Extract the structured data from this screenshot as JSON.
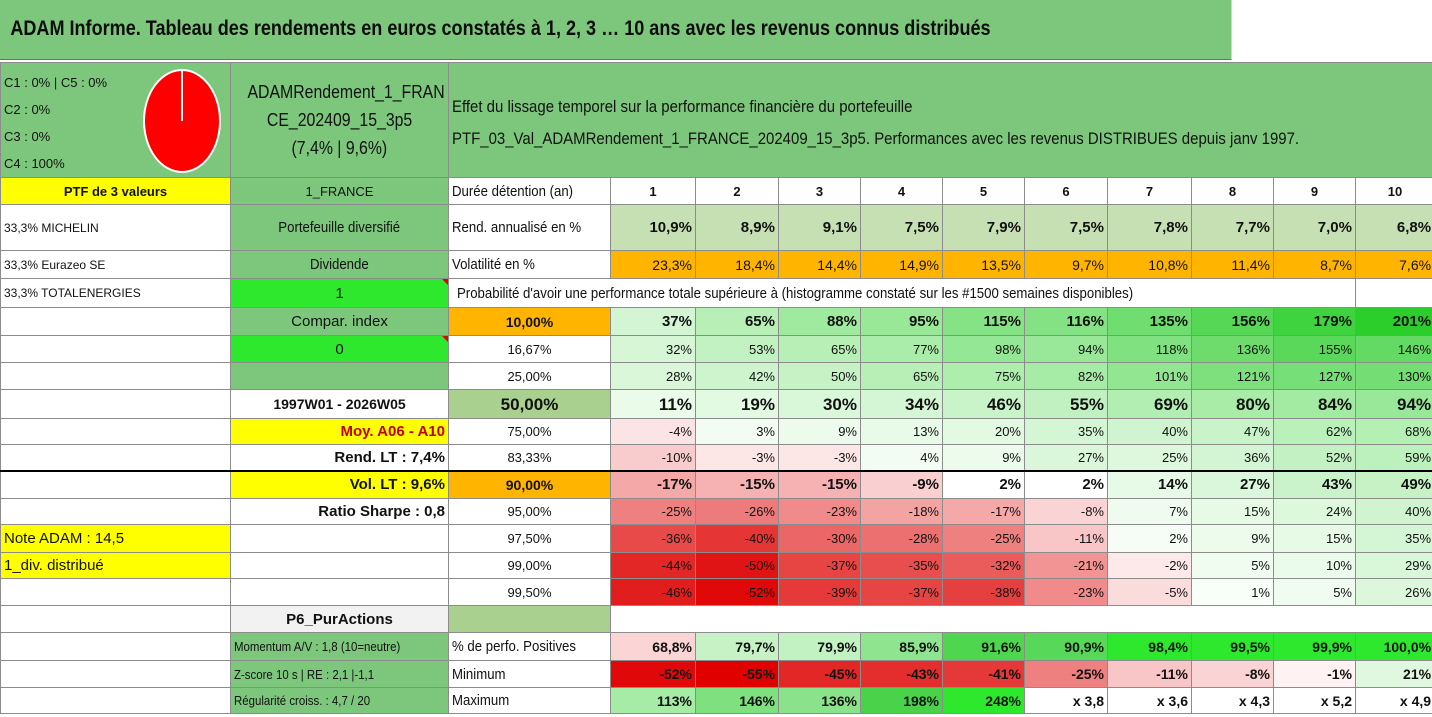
{
  "title": "ADAM Informe. Tableau des rendements en euros constatés à 1, 2, 3 … 10 ans avec les revenus connus distribués",
  "allocation": {
    "lines": [
      "C1 : 0% | C5 : 0%",
      "C2 : 0%",
      "C3 : 0%",
      "C4 : 100%"
    ],
    "pie_slices": [
      {
        "label": "C1",
        "value": 0,
        "color": "#ff0000"
      },
      {
        "label": "C2",
        "value": 0,
        "color": "#ff0000"
      },
      {
        "label": "C3",
        "value": 0,
        "color": "#ff0000"
      },
      {
        "label": "C4",
        "value": 100,
        "color": "#ff0000"
      },
      {
        "label": "C5",
        "value": 0,
        "color": "#ff0000"
      }
    ]
  },
  "portfolio": {
    "name_line1": "ADAMRendement_1_FRAN",
    "name_line2": "CE_202409_15_3p5",
    "name_line3": "(7,4% | 9,6%)",
    "header_line1": "Effet du lissage temporel sur la performance financière du portefeuille",
    "header_line2": "PTF_03_Val_ADAMRendement_1_FRANCE_202409_15_3p5. Performances avec les revenus DISTRIBUES depuis janv 1997."
  },
  "left": {
    "ptf_label": "PTF de 3 valeurs",
    "holdings": [
      "33,3% MICHELIN",
      "33,3% Eurazeo SE",
      "33,3% TOTALENERGIES"
    ],
    "market": "1_FRANCE",
    "type": "Portefeuille diversifié",
    "dividend_label": "Dividende",
    "dividend_value": "1",
    "compar_label": "Compar. index",
    "compar_value": "0",
    "period": "1997W01 - 2026W05",
    "moy": "Moy. A06 - A10",
    "rend_lt": "Rend. LT : 7,4%",
    "vol_lt": "Vol. LT : 9,6%",
    "sharpe": "Ratio Sharpe : 0,8",
    "note": "Note ADAM : 14,5",
    "div_distrib": "1_div. distribué",
    "p6": "P6_PurActions",
    "momentum": "Momentum A/V : 1,8 (10=neutre)",
    "zscore": "Z-score 10 s | RE : 2,1 |-1,1",
    "regularite": "Régularité croiss. : 4,7 / 20"
  },
  "stats": {
    "duree_label": "Durée détention (an)",
    "years": [
      "1",
      "2",
      "3",
      "4",
      "5",
      "6",
      "7",
      "8",
      "9",
      "10"
    ],
    "rend_label": "Rend. annualisé en %",
    "rend": [
      "10,9%",
      "8,9%",
      "9,1%",
      "7,5%",
      "7,9%",
      "7,5%",
      "7,8%",
      "7,7%",
      "7,0%",
      "6,8%"
    ],
    "vol_label": "Volatilité en %",
    "vol": [
      "23,3%",
      "18,4%",
      "14,4%",
      "14,9%",
      "13,5%",
      "9,7%",
      "10,8%",
      "11,4%",
      "8,7%",
      "7,6%"
    ],
    "vol_colors": [
      "#ffb400",
      "#ffb400",
      "#ffb400",
      "#ffb400",
      "#ffb400",
      "#ffb400",
      "#ffb400",
      "#ffb400",
      "#ffb400",
      "#ffb400"
    ],
    "prob_label": "Probabilité d'avoir une performance totale supérieure à (histogramme constaté sur les #1500 semaines disponibles)"
  },
  "prob_rows": [
    {
      "level": "10,00%",
      "values": [
        "37%",
        "65%",
        "88%",
        "95%",
        "115%",
        "116%",
        "135%",
        "156%",
        "179%",
        "201%"
      ],
      "colors": [
        "#d3f5d3",
        "#b7efb7",
        "#a0eaa0",
        "#98e898",
        "#85e385",
        "#84e284",
        "#6fdd6f",
        "#56d856",
        "#3fd33f",
        "#2bce2b"
      ]
    },
    {
      "level": "16,67%",
      "values": [
        "32%",
        "53%",
        "65%",
        "77%",
        "98%",
        "94%",
        "118%",
        "136%",
        "155%",
        "146%"
      ],
      "colors": [
        "#d6f6d6",
        "#c2f1c2",
        "#b7efb7",
        "#aaeca9",
        "#94e794",
        "#99e899",
        "#80e180",
        "#6ddc6d",
        "#59d859",
        "#63da63"
      ]
    },
    {
      "level": "25,00%",
      "values": [
        "28%",
        "42%",
        "50%",
        "65%",
        "75%",
        "82%",
        "101%",
        "121%",
        "127%",
        "130%"
      ],
      "colors": [
        "#daf7da",
        "#cdf4cd",
        "#c6f2c6",
        "#b7efb7",
        "#adeead",
        "#a6eca6",
        "#92e692",
        "#7de07d",
        "#77df77",
        "#74de74"
      ]
    },
    {
      "level": "50,00%",
      "values": [
        "11%",
        "19%",
        "30%",
        "34%",
        "46%",
        "55%",
        "69%",
        "80%",
        "84%",
        "94%"
      ],
      "colors": [
        "#eafbea",
        "#e2f9e2",
        "#d9f7d9",
        "#d4f6d4",
        "#c9f3c9",
        "#c1f1c1",
        "#b2eeb2",
        "#a8eca8",
        "#a3eba3",
        "#99e899"
      ]
    },
    {
      "level": "75,00%",
      "values": [
        "-4%",
        "3%",
        "9%",
        "13%",
        "20%",
        "35%",
        "40%",
        "47%",
        "62%",
        "68%"
      ],
      "colors": [
        "#fce4e4",
        "#f3fcf3",
        "#ecfbec",
        "#e8fae8",
        "#e2f9e2",
        "#d4f6d4",
        "#cff4cf",
        "#c9f3c9",
        "#baf0ba",
        "#b4efb4"
      ]
    },
    {
      "level": "83,33%",
      "values": [
        "-10%",
        "-3%",
        "-3%",
        "4%",
        "9%",
        "27%",
        "25%",
        "36%",
        "52%",
        "59%"
      ],
      "colors": [
        "#f8cccc",
        "#fce6e6",
        "#fce6e6",
        "#f2fcf2",
        "#ecfbec",
        "#dbf7db",
        "#ddf8dd",
        "#d3f5d3",
        "#c3f1c3",
        "#bcf0bc"
      ]
    },
    {
      "level": "90,00%",
      "values": [
        "-17%",
        "-15%",
        "-15%",
        "-9%",
        "2%",
        "2%",
        "14%",
        "27%",
        "43%",
        "49%"
      ],
      "colors": [
        "#f5a8a8",
        "#f6b2b2",
        "#f6b2b2",
        "#f9cfcf",
        "#ffffff",
        "#ffffff",
        "#e7fae7",
        "#dbf7db",
        "#cbf3cb",
        "#c6f2c6"
      ]
    },
    {
      "level": "95,00%",
      "values": [
        "-25%",
        "-26%",
        "-23%",
        "-18%",
        "-17%",
        "-8%",
        "7%",
        "15%",
        "24%",
        "40%"
      ],
      "colors": [
        "#ef8080",
        "#ee7b7b",
        "#f18a8a",
        "#f4a3a3",
        "#f5a8a8",
        "#fad4d4",
        "#effbef",
        "#e6fae6",
        "#ddf8dd",
        "#cff4cf"
      ]
    },
    {
      "level": "97,50%",
      "values": [
        "-36%",
        "-40%",
        "-30%",
        "-28%",
        "-25%",
        "-11%",
        "2%",
        "9%",
        "15%",
        "35%"
      ],
      "colors": [
        "#e84949",
        "#e63535",
        "#eb6666",
        "#ec7070",
        "#ef8080",
        "#f8c6c6",
        "#f6fdf6",
        "#ecfbec",
        "#e6fae6",
        "#d4f6d4"
      ]
    },
    {
      "level": "99,00%",
      "values": [
        "-44%",
        "-50%",
        "-37%",
        "-35%",
        "-32%",
        "-21%",
        "-2%",
        "5%",
        "10%",
        "29%"
      ],
      "colors": [
        "#e32626",
        "#e01414",
        "#e74444",
        "#e84e4e",
        "#ea5c5c",
        "#f29494",
        "#fde9e9",
        "#f1fcf1",
        "#ebfbeb",
        "#d9f7d9"
      ]
    },
    {
      "level": "99,50%",
      "values": [
        "-46%",
        "-52%",
        "-39%",
        "-37%",
        "-38%",
        "-23%",
        "-5%",
        "1%",
        "5%",
        "26%"
      ],
      "colors": [
        "#e21d1d",
        "#e00808",
        "#e63a3a",
        "#e74444",
        "#e63f3f",
        "#f18a8a",
        "#fbdcdc",
        "#f8fef8",
        "#f1fcf1",
        "#dcf7dc"
      ]
    }
  ],
  "bottom": {
    "pos_label": "% de perfo. Positives",
    "pos": [
      "68,8%",
      "79,7%",
      "79,9%",
      "85,9%",
      "91,6%",
      "90,9%",
      "98,4%",
      "99,5%",
      "99,9%",
      "100,0%"
    ],
    "pos_colors": [
      "#fbd5d5",
      "#c6f2c6",
      "#c2f1c2",
      "#8fe58f",
      "#4fd64f",
      "#58d858",
      "#2ee82e",
      "#2ee82e",
      "#2ee82e",
      "#2ee82e"
    ],
    "min_label": "Minimum",
    "min": [
      "-52%",
      "-55%",
      "-45%",
      "-43%",
      "-41%",
      "-25%",
      "-11%",
      "-8%",
      "-1%",
      "21%"
    ],
    "min_colors": [
      "#e00808",
      "#e00000",
      "#e32626",
      "#e42e2e",
      "#e53838",
      "#ef8080",
      "#f8c6c6",
      "#fad4d4",
      "#fef2f2",
      "#dff8df"
    ],
    "max_label": "Maximum",
    "max": [
      "113%",
      "146%",
      "136%",
      "198%",
      "248%",
      "x 3,8",
      "x 3,6",
      "x 4,3",
      "x 5,2",
      "x 4,9"
    ],
    "max_colors": [
      "#a6eca6",
      "#7fe07f",
      "#8ae38a",
      "#4ad34a",
      "#2ee82e",
      "#ffffff",
      "#ffffff",
      "#ffffff",
      "#ffffff",
      "#ffffff"
    ]
  }
}
